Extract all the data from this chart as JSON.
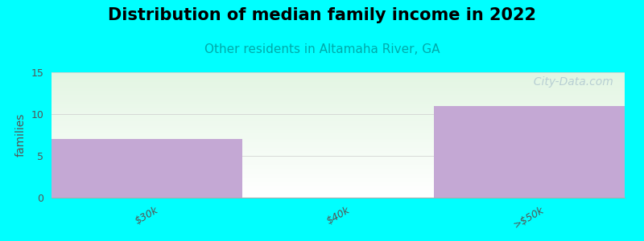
{
  "title": "Distribution of median family income in 2022",
  "subtitle": "Other residents in Altamaha River, GA",
  "categories": [
    "$30k",
    "$40k",
    ">$50k"
  ],
  "values": [
    7,
    0,
    11
  ],
  "bin_edges": [
    0,
    1,
    1.15,
    2
  ],
  "bar_color": "#c4a8d4",
  "background_color": "#00ffff",
  "plot_bg_top_color": "#e2f5e2",
  "ylabel": "families",
  "ylim": [
    0,
    15
  ],
  "yticks": [
    0,
    5,
    10,
    15
  ],
  "title_fontsize": 15,
  "subtitle_fontsize": 11,
  "subtitle_color": "#00aaaa",
  "watermark_text": "  City-Data.com",
  "watermark_color": "#b0c8d0",
  "tick_label_color": "#555555",
  "axis_color": "#aaaaaa"
}
